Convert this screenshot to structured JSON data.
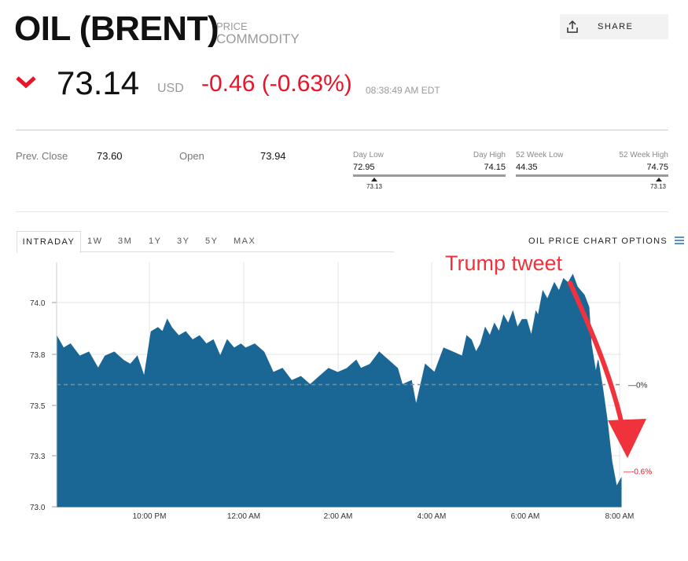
{
  "header": {
    "title": "OIL (BRENT)",
    "type_line1": "PRICE",
    "type_line2": "COMMODITY",
    "share_label": "SHARE"
  },
  "quote": {
    "price": "73.14",
    "currency": "USD",
    "change": "-0.46 (-0.63%)",
    "time": "08:38:49 AM EDT",
    "direction": "down",
    "down_color": "#e8152a"
  },
  "stats": {
    "prev_close_label": "Prev. Close",
    "prev_close": "73.60",
    "open_label": "Open",
    "open": "73.94",
    "day_low_label": "Day Low",
    "day_high_label": "Day High",
    "day_low": "72.95",
    "day_high": "74.15",
    "day_marker": "73.13",
    "week52_low_label": "52 Week Low",
    "week52_high_label": "52 Week High",
    "week52_low": "44.35",
    "week52_high": "74.75",
    "week52_marker": "73.13"
  },
  "tabs": [
    {
      "label": "INTRADAY",
      "active": true
    },
    {
      "label": "1W",
      "active": false
    },
    {
      "label": "3M",
      "active": false
    },
    {
      "label": "1Y",
      "active": false
    },
    {
      "label": "3Y",
      "active": false
    },
    {
      "label": "5Y",
      "active": false
    },
    {
      "label": "MAX",
      "active": false
    }
  ],
  "chart_options_label": "OIL PRICE CHART OPTIONS",
  "icons": {
    "share": "share-upload-icon",
    "trend": "down-chevron-icon",
    "menu": "hamburger-menu-icon",
    "annotation": "red-curved-arrow"
  },
  "colors": {
    "area_fill": "#1a6796",
    "annotation": "#f0323c",
    "reference_line": "#8a8a8a"
  },
  "chart_data": {
    "type": "area",
    "x_ticks": [
      "10:00 PM",
      "12:00 AM",
      "2:00 AM",
      "4:00 AM",
      "6:00 AM",
      "8:00 AM"
    ],
    "y_ticks": [
      "74.0",
      "73.8",
      "73.5",
      "73.3",
      "73.0"
    ],
    "ylim": [
      73.0,
      74.2
    ],
    "reference_value": 73.6,
    "reference_label": "0%",
    "last_label": "-0.6%",
    "annotation": "Trump tweet",
    "x_hours": [
      0,
      0.15,
      0.3,
      0.5,
      0.7,
      0.9,
      1.05,
      1.25,
      1.45,
      1.6,
      1.75,
      1.9,
      2.05,
      2.2,
      2.3,
      2.4,
      2.5,
      2.65,
      2.8,
      2.95,
      3.1,
      3.25,
      3.4,
      3.55,
      3.7,
      3.85,
      4.0,
      4.1,
      4.3,
      4.5,
      4.7,
      4.9,
      5.1,
      5.3,
      5.5,
      5.7,
      5.9,
      6.1,
      6.3,
      6.5,
      6.6,
      6.8,
      7.0,
      7.2,
      7.4,
      7.5,
      7.7,
      7.8,
      8.0,
      8.2,
      8.4,
      8.6,
      8.8,
      8.9,
      9.0,
      9.1,
      9.2,
      9.3,
      9.4,
      9.5,
      9.6,
      9.7,
      9.8,
      9.9,
      10.0,
      10.1,
      10.2,
      10.3,
      10.4,
      10.45,
      10.55,
      10.65,
      10.8,
      10.9,
      11.0,
      11.1,
      11.2,
      11.3,
      11.45,
      11.55,
      11.6,
      11.7,
      11.75,
      11.85,
      11.95,
      12.05,
      12.15,
      12.25
    ],
    "values": [
      73.84,
      73.78,
      73.8,
      73.74,
      73.76,
      73.68,
      73.74,
      73.76,
      73.72,
      73.7,
      73.74,
      73.64,
      73.86,
      73.88,
      73.86,
      73.92,
      73.88,
      73.84,
      73.86,
      73.82,
      73.84,
      73.8,
      73.82,
      73.74,
      73.82,
      73.78,
      73.8,
      73.78,
      73.8,
      73.76,
      73.66,
      73.68,
      73.62,
      73.64,
      73.6,
      73.64,
      73.68,
      73.66,
      73.68,
      73.72,
      73.68,
      73.7,
      73.76,
      73.72,
      73.68,
      73.6,
      73.62,
      73.5,
      73.7,
      73.66,
      73.78,
      73.76,
      73.74,
      73.84,
      73.82,
      73.76,
      73.8,
      73.88,
      73.84,
      73.9,
      73.86,
      73.94,
      73.9,
      73.96,
      73.88,
      73.92,
      73.92,
      73.84,
      73.96,
      73.94,
      74.06,
      74.02,
      74.1,
      74.06,
      74.12,
      74.1,
      74.14,
      74.08,
      74.04,
      73.98,
      73.8,
      73.66,
      73.72,
      73.58,
      73.42,
      73.22,
      73.1,
      73.14
    ]
  }
}
